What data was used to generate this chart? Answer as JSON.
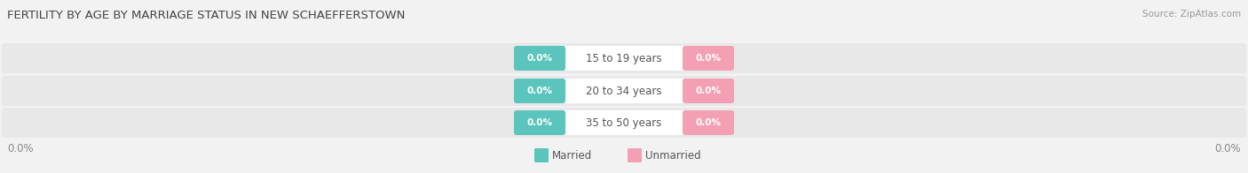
{
  "title": "FERTILITY BY AGE BY MARRIAGE STATUS IN NEW SCHAEFFERSTOWN",
  "source": "Source: ZipAtlas.com",
  "categories": [
    "15 to 19 years",
    "20 to 34 years",
    "35 to 50 years"
  ],
  "married_color": "#5BC4BC",
  "unmarried_color": "#F4A0B4",
  "bar_bg_color": "#E8E8E8",
  "row_bg_color": "#F0F0F0",
  "white_label_bg": "#FFFFFF",
  "x_left_label": "0.0%",
  "x_right_label": "0.0%",
  "legend_married": "Married",
  "legend_unmarried": "Unmarried",
  "title_fontsize": 9.5,
  "source_fontsize": 7.5,
  "cat_label_fontsize": 8.5,
  "badge_fontsize": 7.5,
  "axis_label_fontsize": 8.5,
  "legend_fontsize": 8.5,
  "bg_color": "#F2F2F2"
}
